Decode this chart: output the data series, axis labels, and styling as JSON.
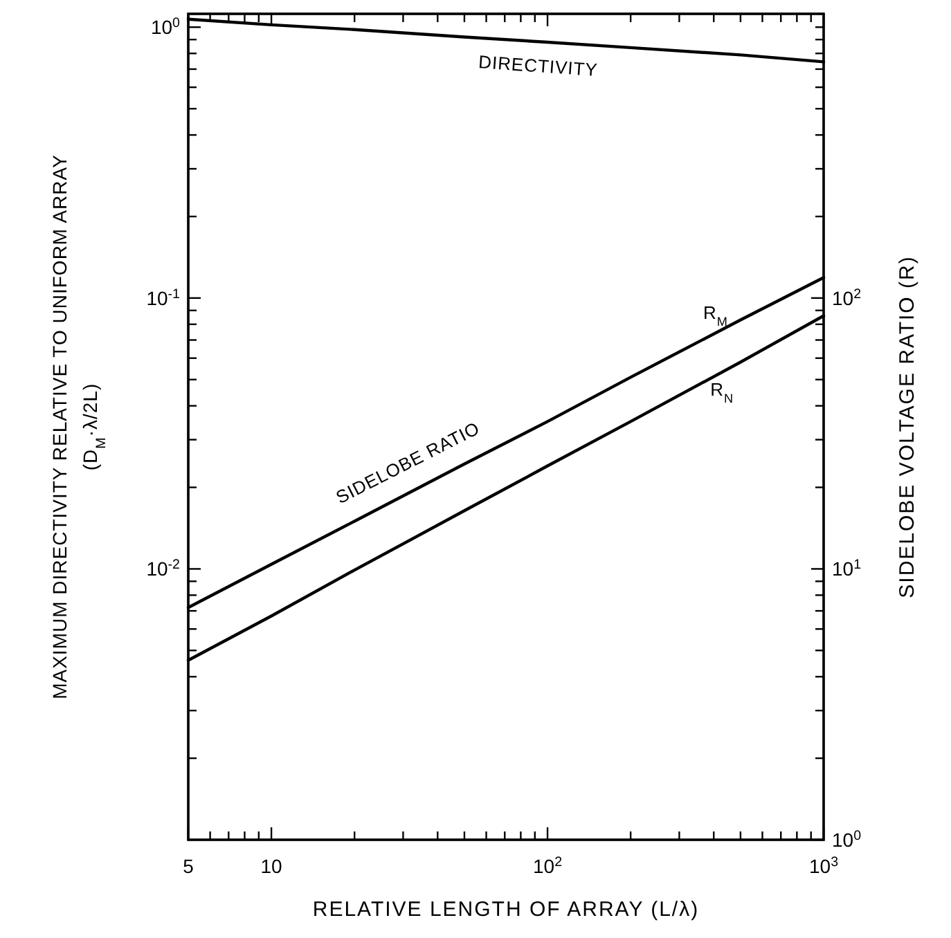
{
  "chart_data": [
    {
      "type": "line",
      "xlabel": "RELATIVE LENGTH OF ARRAY (L/λ)",
      "ylabel": "MAXIMUM DIRECTIVITY RELATIVE TO UNIFORM ARRAY\n(D$_{M}$·λ/2L)",
      "log": "xy",
      "x": [
        5,
        10,
        20,
        50,
        100,
        200,
        500,
        1000
      ],
      "xlim": [
        5,
        1000
      ],
      "xticks": [
        5,
        {
          "value": 6,
          "label": null
        },
        {
          "value": 7,
          "label": null
        },
        {
          "value": 8,
          "label": null
        },
        {
          "value": 9,
          "label": null
        },
        10,
        {
          "value": 20,
          "label": null
        },
        {
          "value": 30,
          "label": null
        },
        {
          "value": 40,
          "label": null
        },
        {
          "value": 50,
          "label": null
        },
        {
          "value": 60,
          "label": null
        },
        {
          "value": 70,
          "label": null
        },
        {
          "value": 80,
          "label": null
        },
        {
          "value": 90,
          "label": null
        },
        {
          "value": 100,
          "label": "10$^{2}$"
        },
        {
          "value": 200,
          "label": null
        },
        {
          "value": 300,
          "label": null
        },
        {
          "value": 400,
          "label": null
        },
        {
          "value": 500,
          "label": null
        },
        {
          "value": 600,
          "label": null
        },
        {
          "value": 700,
          "label": null
        },
        {
          "value": 800,
          "label": null
        },
        {
          "value": 900,
          "label": null
        },
        {
          "value": 1000,
          "label": "10$^{3}$"
        }
      ],
      "ylim": [
        0.001,
        1.12
      ],
      "yticks": [
        {
          "value": 0.002,
          "label": null
        },
        {
          "value": 0.003,
          "label": null
        },
        {
          "value": 0.004,
          "label": null
        },
        {
          "value": 0.005,
          "label": null
        },
        {
          "value": 0.006,
          "label": null
        },
        {
          "value": 0.007,
          "label": null
        },
        {
          "value": 0.008,
          "label": null
        },
        {
          "value": 0.009,
          "label": null
        },
        {
          "value": 0.01,
          "label": "10$^{-2}$"
        },
        {
          "value": 0.02,
          "label": null
        },
        {
          "value": 0.03,
          "label": null
        },
        {
          "value": 0.04,
          "label": null
        },
        {
          "value": 0.05,
          "label": null
        },
        {
          "value": 0.06,
          "label": null
        },
        {
          "value": 0.07,
          "label": null
        },
        {
          "value": 0.08,
          "label": null
        },
        {
          "value": 0.09,
          "label": null
        },
        {
          "value": 0.1,
          "label": "10$^{-1}$"
        },
        {
          "value": 0.2,
          "label": null
        },
        {
          "value": 0.3,
          "label": null
        },
        {
          "value": 0.4,
          "label": null
        },
        {
          "value": 0.5,
          "label": null
        },
        {
          "value": 0.6,
          "label": null
        },
        {
          "value": 0.7,
          "label": null
        },
        {
          "value": 0.8,
          "label": null
        },
        {
          "value": 0.9,
          "label": null
        },
        {
          "value": 1,
          "label": "10$^{0}$"
        }
      ],
      "series": [
        {
          "name": "DIRECTIVITY",
          "color": "#000000",
          "values": [
            1.07,
            1.02,
            0.98,
            0.92,
            0.88,
            0.84,
            0.79,
            0.745
          ]
        }
      ]
    },
    {
      "type": "line",
      "ylabel": "SIDELOBE VOLTAGE RATIO (R)",
      "log": "xy",
      "tick_labels": "y",
      "x": [
        5,
        10,
        20,
        50,
        100,
        200,
        500,
        1000
      ],
      "xlim": [
        5,
        1000
      ],
      "ylim": [
        1,
        1120
      ],
      "yticks": [
        {
          "value": 1,
          "label": "10$^{0}$"
        },
        {
          "value": 2,
          "label": null
        },
        {
          "value": 3,
          "label": null
        },
        {
          "value": 4,
          "label": null
        },
        {
          "value": 5,
          "label": null
        },
        {
          "value": 6,
          "label": null
        },
        {
          "value": 7,
          "label": null
        },
        {
          "value": 8,
          "label": null
        },
        {
          "value": 9,
          "label": null
        },
        {
          "value": 10,
          "label": "10$^{1}$"
        },
        {
          "value": 20,
          "label": null
        },
        {
          "value": 30,
          "label": null
        },
        {
          "value": 40,
          "label": null
        },
        {
          "value": 50,
          "label": null
        },
        {
          "value": 60,
          "label": null
        },
        {
          "value": 70,
          "label": null
        },
        {
          "value": 80,
          "label": null
        },
        {
          "value": 90,
          "label": null
        },
        {
          "value": 100,
          "label": "10$^{2}$"
        },
        {
          "value": 200,
          "label": null
        },
        {
          "value": 300,
          "label": null
        },
        {
          "value": 400,
          "label": null
        },
        {
          "value": 500,
          "label": null
        },
        {
          "value": 600,
          "label": null
        },
        {
          "value": 700,
          "label": null
        },
        {
          "value": 800,
          "label": null
        },
        {
          "value": 900,
          "label": null
        },
        {
          "value": 1000,
          "label": null
        }
      ],
      "series": [
        {
          "name": "R$_{M}$",
          "color": "#000000",
          "values": [
            7.2,
            10.4,
            15,
            24.4,
            35,
            51,
            83,
            119
          ]
        },
        {
          "name": "R$_{N}$",
          "color": "#000000",
          "values": [
            4.6,
            6.7,
            9.9,
            16.4,
            24,
            35,
            58,
            86
          ]
        }
      ],
      "annotations": [
        "SIDELOBE RATIO"
      ]
    }
  ]
}
